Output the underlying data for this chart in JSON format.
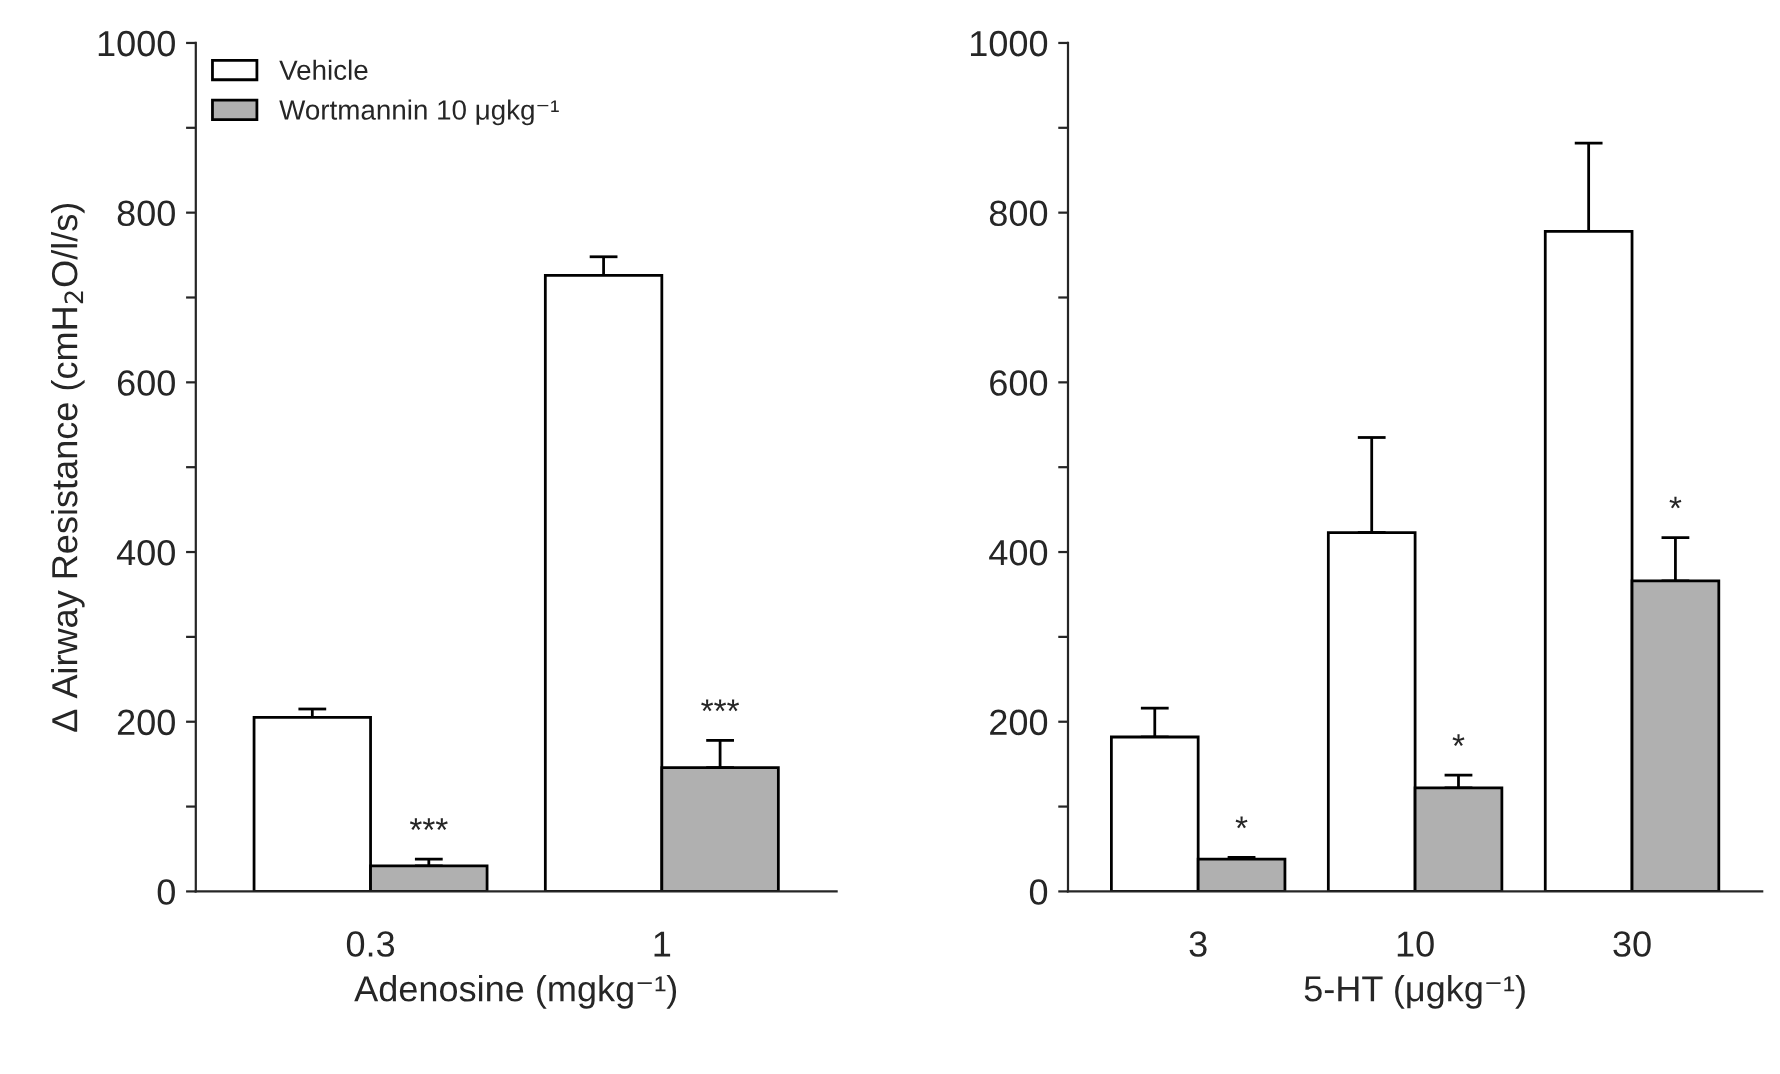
{
  "chart_data": [
    {
      "type": "bar",
      "categories": [
        "0.3",
        "1"
      ],
      "xlabel": "Adenosine (mgkg⁻¹)",
      "ylabel": "Δ Airway Resistance (cmH$_{2}$O/l/s)",
      "ylim": [
        0,
        1000
      ],
      "yticks": [
        0,
        {
          "value": 100,
          "label": null
        },
        200,
        {
          "value": 300,
          "label": null
        },
        400,
        {
          "value": 500,
          "label": null
        },
        600,
        {
          "value": 700,
          "label": null
        },
        800,
        {
          "value": 900,
          "label": null
        },
        1000
      ],
      "legend": "top left",
      "grid": false,
      "series": [
        {
          "name": "Vehicle",
          "color": "#ffffff",
          "values": [
            205,
            726
          ],
          "errors": [
            [
              205,
              215
            ],
            [
              726,
              748
            ]
          ]
        },
        {
          "name": "Wortmannin 10 μgkg⁻¹",
          "color": "#b0b0b0",
          "values": [
            30,
            146
          ],
          "errors": [
            [
              30,
              38
            ],
            [
              146,
              178
            ]
          ]
        }
      ],
      "annotations": [
        {
          "text": "***",
          "x": "0.3",
          "y": 38
        },
        {
          "text": "***",
          "x": "1",
          "y": 178
        }
      ]
    },
    {
      "type": "bar",
      "categories": [
        "3",
        "10",
        "30"
      ],
      "xlabel": "5-HT (μgkg⁻¹)",
      "ylim": [
        0,
        1000
      ],
      "yticks": [
        0,
        {
          "value": 100,
          "label": null
        },
        200,
        {
          "value": 300,
          "label": null
        },
        400,
        {
          "value": 500,
          "label": null
        },
        600,
        {
          "value": 700,
          "label": null
        },
        800,
        {
          "value": 900,
          "label": null
        },
        1000
      ],
      "grid": false,
      "series": [
        {
          "color": "#ffffff",
          "values": [
            182,
            423,
            778
          ],
          "errors": [
            [
              182,
              216
            ],
            [
              423,
              535
            ],
            [
              778,
              882
            ]
          ]
        },
        {
          "color": "#b0b0b0",
          "values": [
            38,
            122,
            366
          ],
          "errors": [
            [
              38,
              40
            ],
            [
              122,
              137
            ],
            [
              366,
              417
            ]
          ]
        }
      ],
      "annotations": [
        {
          "text": "*",
          "x": "3",
          "y": 40
        },
        {
          "text": "*",
          "x": "10",
          "y": 137
        },
        {
          "text": "*",
          "x": "30",
          "y": 417
        }
      ]
    }
  ]
}
